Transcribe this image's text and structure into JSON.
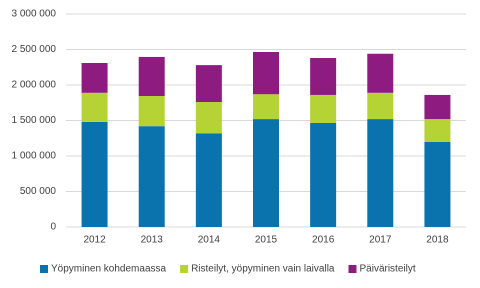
{
  "chart_data": {
    "type": "stacked_bar",
    "categories": [
      "2012",
      "2013",
      "2014",
      "2015",
      "2016",
      "2017",
      "2018"
    ],
    "series": [
      {
        "name": "Yöpyminen kohdemaassa",
        "color": "#0a73ae",
        "values": [
          1480000,
          1420000,
          1320000,
          1520000,
          1465000,
          1520000,
          1200000
        ]
      },
      {
        "name": "Risteilyt, yöpyminen vain laivalla",
        "color": "#b5d334",
        "values": [
          410000,
          425000,
          440000,
          350000,
          395000,
          370000,
          320000
        ]
      },
      {
        "name": "Päiväristeilyt",
        "color": "#8e1c80",
        "values": [
          420000,
          550000,
          520000,
          595000,
          520000,
          550000,
          340000
        ]
      }
    ],
    "ylim": [
      0,
      3000000
    ],
    "yticks": [
      0,
      {
        "value": 500000,
        "label": "500 000"
      },
      {
        "value": 1000000,
        "label": "1 000 000"
      },
      {
        "value": 1500000,
        "label": "1 500 000"
      },
      {
        "value": 2000000,
        "label": "2 000 000"
      },
      {
        "value": 2500000,
        "label": "2 500 000"
      },
      {
        "value": 3000000,
        "label": "3 000 000"
      }
    ],
    "grid": true,
    "legend": "bottom"
  }
}
